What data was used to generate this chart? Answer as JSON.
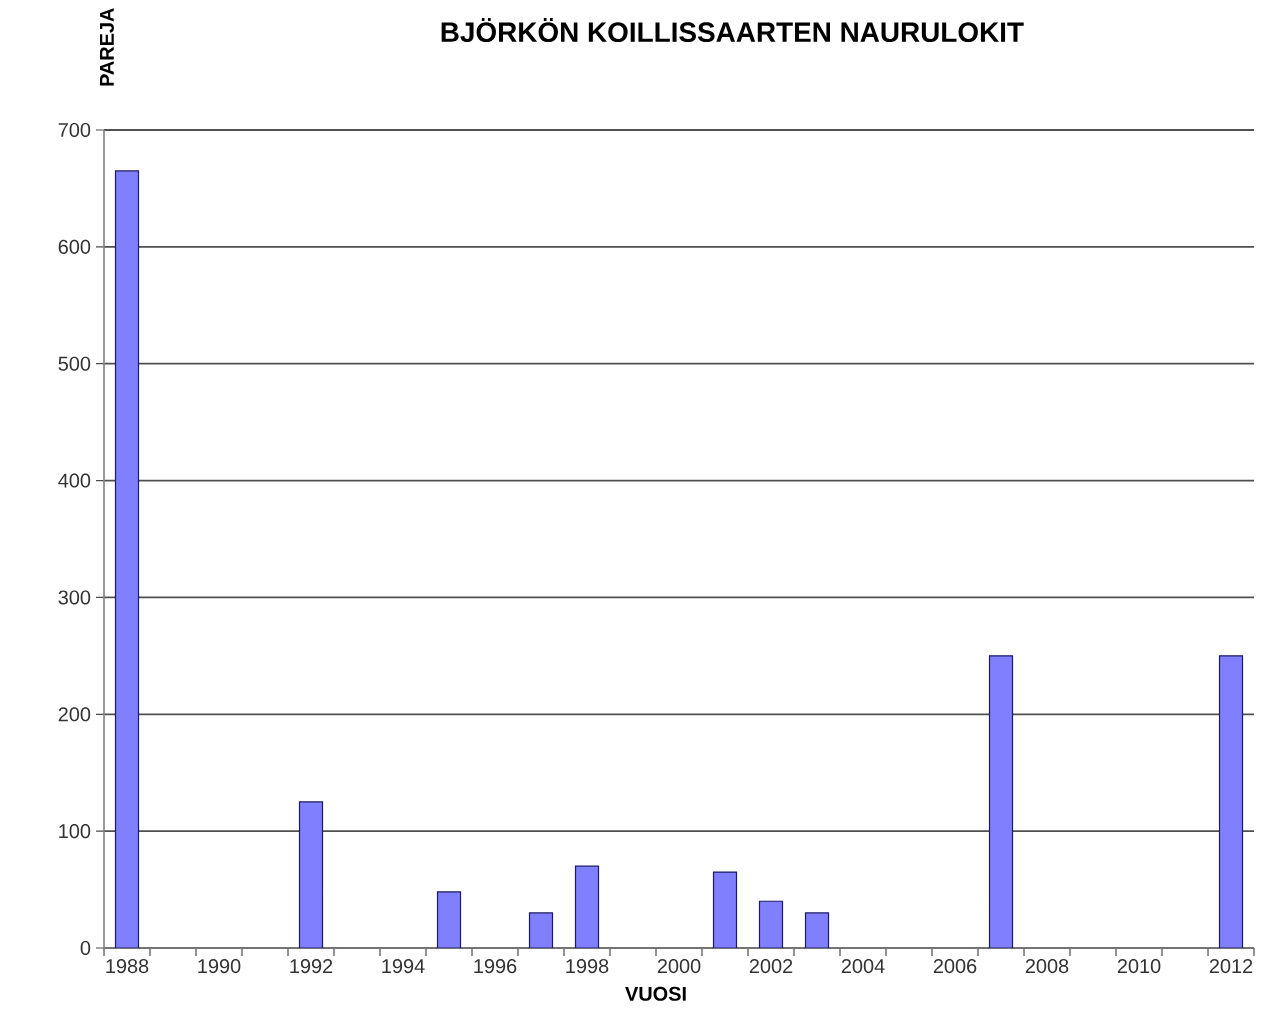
{
  "chart_data": {
    "type": "bar",
    "title": "BJÖRKÖN KOILLISSAARTEN NAURULOKIT",
    "xlabel": "VUOSI",
    "ylabel": "PAREJA",
    "categories": [
      "1988",
      null,
      "1990",
      null,
      "1992",
      null,
      "1994",
      null,
      "1996",
      null,
      "1998",
      null,
      "2000",
      null,
      "2002",
      null,
      "2004",
      null,
      "2006",
      null,
      "2008",
      null,
      "2010",
      null,
      "2012"
    ],
    "values": [
      665,
      null,
      null,
      null,
      125,
      null,
      null,
      48,
      null,
      30,
      70,
      null,
      null,
      65,
      40,
      30,
      null,
      null,
      null,
      250,
      null,
      null,
      null,
      null,
      250
    ],
    "color": "#8080ff",
    "ylim": [
      0,
      700
    ],
    "yticks": [
      0,
      100,
      200,
      300,
      400,
      500,
      600,
      700
    ],
    "grid": "y"
  }
}
